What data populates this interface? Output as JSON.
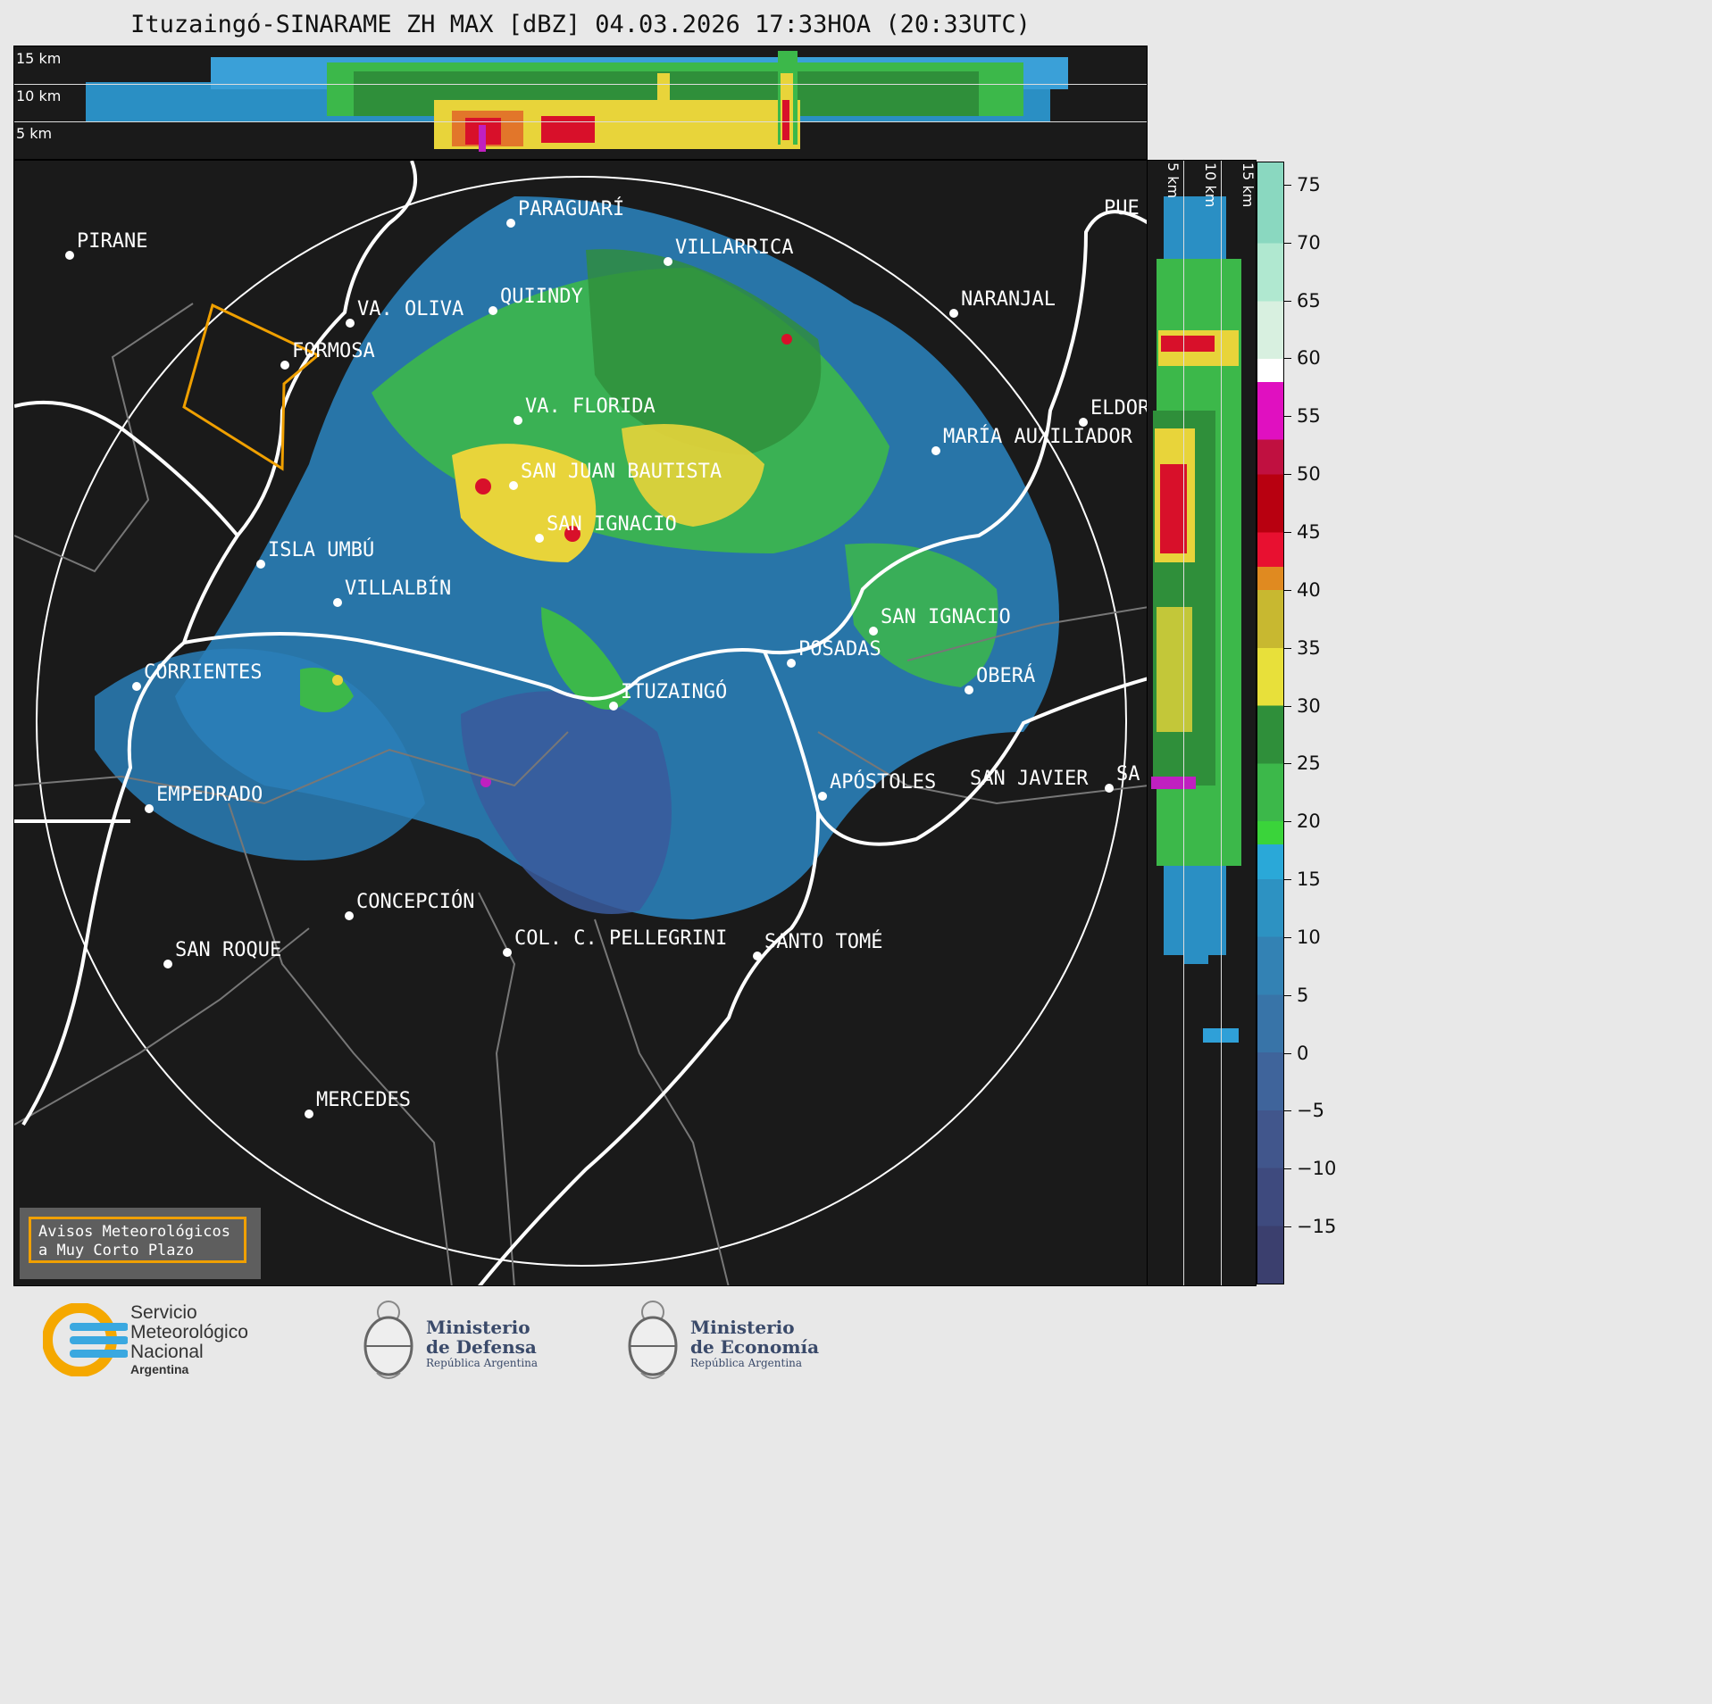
{
  "title": "Ituzaingó-SINARAME ZH MAX [dBZ] 04.03.2026 17:33HOA (20:33UTC)",
  "top_panel": {
    "labels": [
      "15 km",
      "10 km",
      "5 km"
    ]
  },
  "side_panel": {
    "labels": [
      "5 km",
      "10 km",
      "15 km"
    ]
  },
  "cities": [
    {
      "name": "PIRANE"
    },
    {
      "name": "PARAGUARÍ"
    },
    {
      "name": "VILLARRICA"
    },
    {
      "name": "QUIINDY"
    },
    {
      "name": "VA. OLIVA"
    },
    {
      "name": "NARANJAL"
    },
    {
      "name": "FORMOSA"
    },
    {
      "name": "VA. FLORIDA"
    },
    {
      "name": "ELDOR"
    },
    {
      "name": "MARÍA AUXILIADOR"
    },
    {
      "name": "SAN JUAN BAUTISTA"
    },
    {
      "name": "SAN IGNACIO"
    },
    {
      "name": "ISLA UMBÚ"
    },
    {
      "name": "VILLALBÍN"
    },
    {
      "name": "SAN IGNACIO"
    },
    {
      "name": "POSADAS"
    },
    {
      "name": "CORRIENTES"
    },
    {
      "name": "ITUZAINGÓ"
    },
    {
      "name": "OBERÁ"
    },
    {
      "name": "APÓSTOLES"
    },
    {
      "name": "SAN JAVIER"
    },
    {
      "name": "SA"
    },
    {
      "name": "EMPEDRADO"
    },
    {
      "name": "CONCEPCIÓN"
    },
    {
      "name": "COL. C. PELLEGRINI"
    },
    {
      "name": "SANTO TOMÉ"
    },
    {
      "name": "SAN ROQUE"
    },
    {
      "name": "MERCEDES"
    },
    {
      "name": "PUE"
    }
  ],
  "colorbar": {
    "min": -20,
    "max": 77,
    "ticks": [
      "75",
      "70",
      "65",
      "60",
      "55",
      "50",
      "45",
      "40",
      "35",
      "30",
      "25",
      "20",
      "15",
      "10",
      "5",
      "0",
      "−5",
      "−10",
      "−15"
    ],
    "tick_values": [
      75,
      70,
      65,
      60,
      55,
      50,
      45,
      40,
      35,
      30,
      25,
      20,
      15,
      10,
      5,
      0,
      -5,
      -10,
      -15
    ]
  },
  "warning_box": {
    "line1": "Avisos Meteorológicos",
    "line2": "a Muy Corto Plazo",
    "color": "#f0a000"
  },
  "logos": {
    "smn": {
      "line1": "Servicio",
      "line2": "Meteorológico",
      "line3": "Nacional",
      "line4": "Argentina"
    },
    "defensa": {
      "line1": "Ministerio",
      "line2": "de Defensa",
      "line3": "República Argentina"
    },
    "economia": {
      "line1": "Ministerio",
      "line2": "de Economía",
      "line3": "República Argentina"
    }
  }
}
